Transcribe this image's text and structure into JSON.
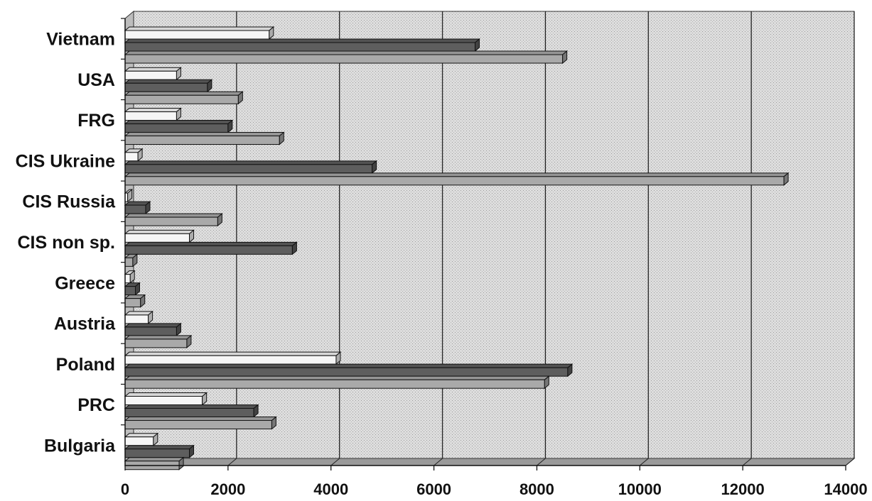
{
  "chart_data": {
    "type": "bar",
    "orientation": "horizontal",
    "categories": [
      "Bulgaria",
      "PRC",
      "Poland",
      "Austria",
      "Greece",
      "CIS non sp.",
      "CIS Russia",
      "CIS Ukraine",
      "FRG",
      "USA",
      "Vietnam"
    ],
    "series": [
      {
        "values": [
          550,
          1500,
          4100,
          450,
          100,
          1250,
          50,
          250,
          1000,
          1000,
          2800
        ]
      },
      {
        "values": [
          1250,
          2500,
          8600,
          1000,
          200,
          3250,
          400,
          4800,
          2000,
          1600,
          6800
        ]
      },
      {
        "values": [
          1050,
          2850,
          8150,
          1200,
          300,
          150,
          1800,
          12800,
          3000,
          2200,
          8500
        ]
      }
    ],
    "xlim": [
      0,
      14000
    ],
    "ticks": [
      "0",
      "2000",
      "4000",
      "6000",
      "8000",
      "10000",
      "12000",
      "14000"
    ],
    "grid": true,
    "colors": {
      "series": [
        "#f6f6f6",
        "#5e5e5e",
        "#a9a9a9"
      ],
      "plot_background": "#d8d8d8",
      "gridline": "#222222"
    }
  }
}
